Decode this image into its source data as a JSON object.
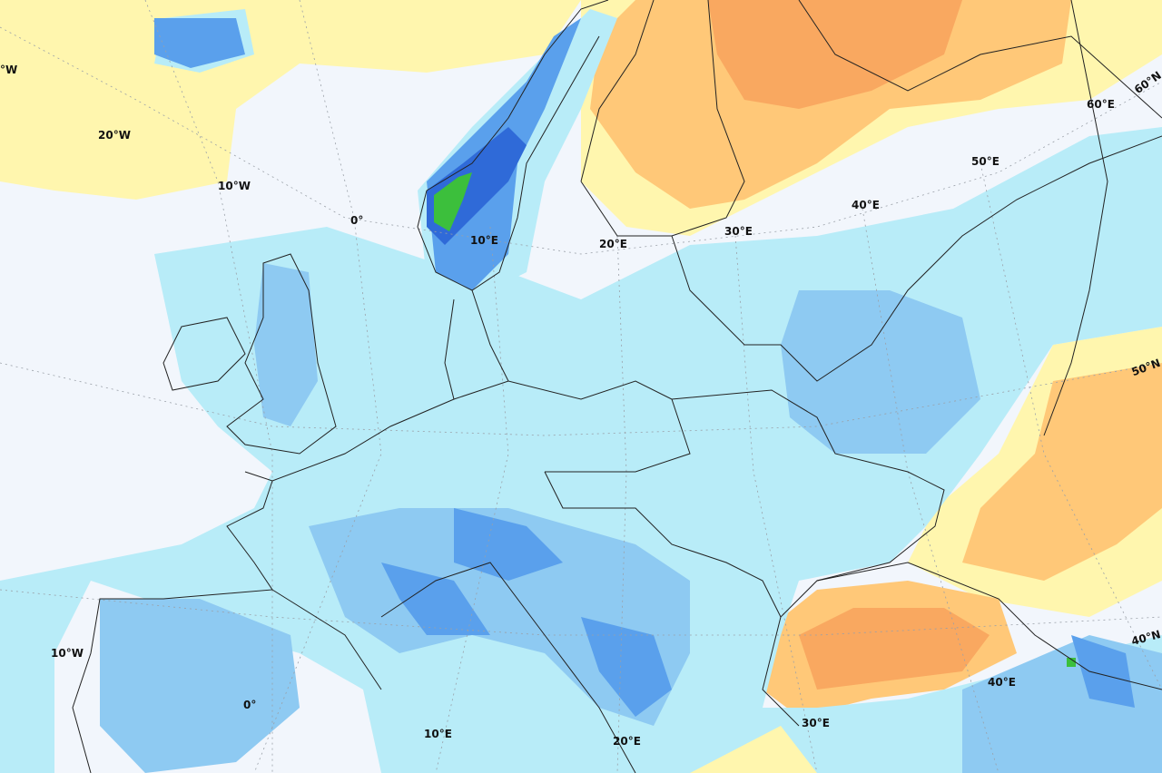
{
  "colors": {
    "background": "#f2f6fc",
    "light_yellow": "#fff6ae",
    "yellow": "#ffe490",
    "light_orange": "#ffc878",
    "orange": "#f9a860",
    "light_cyan": "#b8ecf8",
    "light_blue": "#8ecaf2",
    "blue": "#5aa0ec",
    "dark_blue": "#2f6ad8",
    "green": "#3cbf3c",
    "border": "#222222",
    "graticule": "#9aa0a8"
  },
  "graticule_labels": {
    "lon_top": [
      "°W",
      "20°W",
      "10°W",
      "0°",
      "10°E",
      "20°E",
      "30°E",
      "40°E",
      "50°E",
      "60°E"
    ],
    "lat": [
      "60°N",
      "50°N",
      "40°N"
    ],
    "lon_bottom": [
      "10°W",
      "0°",
      "10°E",
      "20°E",
      "30°E",
      "40°E"
    ]
  }
}
